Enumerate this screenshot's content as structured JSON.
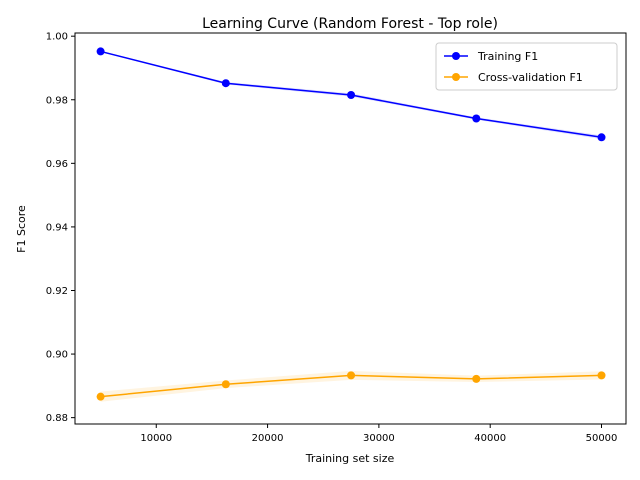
{
  "chart_data": {
    "type": "line",
    "title": "Learning Curve (Random Forest - Top role)",
    "xlabel": "Training set size",
    "ylabel": "F1 Score",
    "xlim": [
      2700,
      52200
    ],
    "ylim": [
      0.878,
      1.001
    ],
    "xticks": [
      10000,
      20000,
      30000,
      40000,
      50000
    ],
    "xtick_labels": [
      "10000",
      "20000",
      "30000",
      "40000",
      "50000"
    ],
    "yticks": [
      0.88,
      0.9,
      0.92,
      0.94,
      0.96,
      0.98,
      1.0
    ],
    "ytick_labels": [
      "0.88",
      "0.90",
      "0.92",
      "0.94",
      "0.96",
      "0.98",
      "1.00"
    ],
    "grid": false,
    "legend_position": "top-right",
    "x": [
      5000,
      16250,
      27500,
      38750,
      50000
    ],
    "series": [
      {
        "name": "Training F1",
        "color": "#0000ff",
        "band_color": "#0000ff",
        "values": [
          0.9952,
          0.9852,
          0.9815,
          0.9741,
          0.9682
        ],
        "std": [
          0.0002,
          0.0004,
          0.0005,
          0.0004,
          0.0006
        ]
      },
      {
        "name": "Cross-validation F1",
        "color": "#ffa500",
        "band_color": "#ffa500",
        "values": [
          0.8866,
          0.8905,
          0.8933,
          0.8922,
          0.8933
        ],
        "std": [
          0.0016,
          0.0012,
          0.0014,
          0.001,
          0.0013
        ]
      }
    ]
  }
}
